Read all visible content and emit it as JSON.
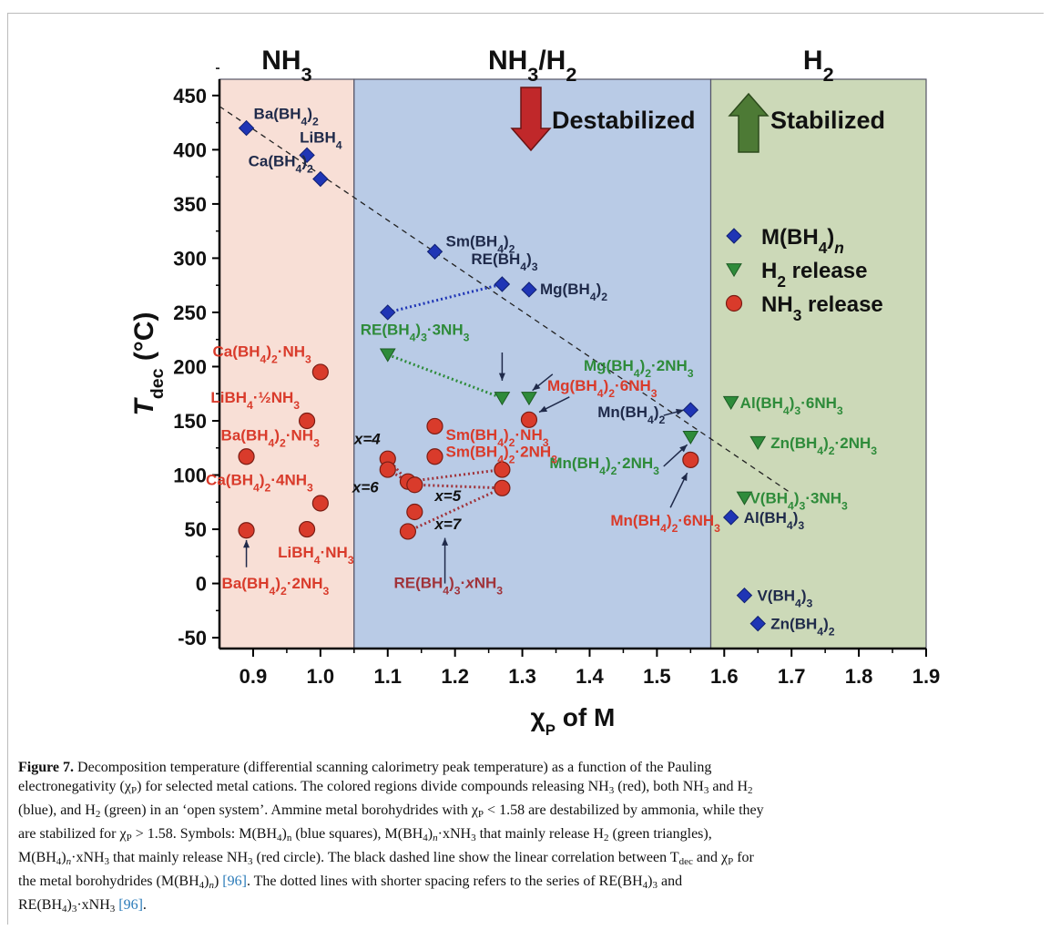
{
  "chart_data": {
    "type": "scatter",
    "xlabel": "χP of M",
    "ylabel": "Tdec (°C)",
    "xlim": [
      0.85,
      1.9
    ],
    "ylim": [
      -60,
      465
    ],
    "xticks": [
      0.9,
      1.0,
      1.1,
      1.2,
      1.3,
      1.4,
      1.5,
      1.6,
      1.7,
      1.8,
      1.9
    ],
    "xtick_labels": [
      "0.9",
      "1.0",
      "1.1",
      "1.2",
      "1.3",
      "1.4",
      "1.5",
      "1.6",
      "1.7",
      "1.8",
      "1.9"
    ],
    "yticks": [
      -50,
      0,
      50,
      100,
      150,
      200,
      250,
      300,
      350,
      400,
      450
    ],
    "ytick_labels": [
      "-50",
      "0",
      "50",
      "100",
      "150",
      "200",
      "250",
      "300",
      "350",
      "400",
      "450"
    ],
    "regions": [
      {
        "label": "NH3",
        "x": [
          0.85,
          1.05
        ],
        "color": "#f8dfd6"
      },
      {
        "label": "NH3/H2",
        "x": [
          1.05,
          1.58
        ],
        "color": "#b9cbe6"
      },
      {
        "label": "H2",
        "x": [
          1.58,
          1.9
        ],
        "color": "#ccd9b8"
      }
    ],
    "arrows": [
      {
        "label": "Destabilized",
        "color": "#c0282a",
        "direction": "down"
      },
      {
        "label": "Stabilized",
        "color": "#4d7a35",
        "direction": "up"
      }
    ],
    "legend": {
      "position": "right",
      "entries": [
        {
          "label": "M(BH4)n",
          "marker": "diamond",
          "color": "#1f35b5"
        },
        {
          "label": "H2 release",
          "marker": "triangle-down",
          "color": "#2e8b3a"
        },
        {
          "label": "NH3 release",
          "marker": "circle",
          "color": "#d93b2b"
        }
      ]
    },
    "series": [
      {
        "name": "M(BH4)n",
        "marker": "diamond",
        "color": "#1f35b5",
        "points": [
          {
            "x": 0.89,
            "y": 420,
            "label": "Ba(BH4)2"
          },
          {
            "x": 0.98,
            "y": 395,
            "label": "LiBH4"
          },
          {
            "x": 1.0,
            "y": 373,
            "label": "Ca(BH4)2"
          },
          {
            "x": 1.17,
            "y": 306,
            "label": "Sm(BH4)2"
          },
          {
            "x": 1.27,
            "y": 276,
            "label": "RE(BH4)3"
          },
          {
            "x": 1.31,
            "y": 271,
            "label": "Mg(BH4)2"
          },
          {
            "x": 1.1,
            "y": 250,
            "label": ""
          },
          {
            "x": 1.55,
            "y": 160,
            "label": "Mn(BH4)2"
          },
          {
            "x": 1.61,
            "y": 61,
            "label": "Al(BH4)3"
          },
          {
            "x": 1.63,
            "y": -11,
            "label": "V(BH4)3"
          },
          {
            "x": 1.65,
            "y": -37,
            "label": "Zn(BH4)2"
          }
        ]
      },
      {
        "name": "H2 release",
        "marker": "triangle-down",
        "color": "#2e8b3a",
        "points": [
          {
            "x": 1.1,
            "y": 211,
            "label": "RE(BH4)3·3NH3"
          },
          {
            "x": 1.27,
            "y": 171,
            "label": ""
          },
          {
            "x": 1.31,
            "y": 171,
            "label": "Mg(BH4)2·2NH3"
          },
          {
            "x": 1.55,
            "y": 135,
            "label": "Mn(BH4)2·2NH3"
          },
          {
            "x": 1.61,
            "y": 167,
            "label": "Al(BH4)3·6NH3"
          },
          {
            "x": 1.65,
            "y": 130,
            "label": "Zn(BH4)2·2NH3"
          },
          {
            "x": 1.63,
            "y": 79,
            "label": "V(BH4)3·3NH3"
          }
        ]
      },
      {
        "name": "NH3 release",
        "marker": "circle",
        "color": "#d93b2b",
        "points": [
          {
            "x": 1.0,
            "y": 195,
            "label": "Ca(BH4)2·NH3"
          },
          {
            "x": 0.98,
            "y": 150,
            "label": "LiBH4·½NH3"
          },
          {
            "x": 0.89,
            "y": 117,
            "label": "Ba(BH4)2·NH3"
          },
          {
            "x": 1.0,
            "y": 74,
            "label": "Ca(BH4)2·4NH3"
          },
          {
            "x": 0.89,
            "y": 49,
            "label": "Ba(BH4)2·2NH3"
          },
          {
            "x": 0.98,
            "y": 50,
            "label": "LiBH4·NH3"
          },
          {
            "x": 1.17,
            "y": 145,
            "label": "Sm(BH4)2·NH3"
          },
          {
            "x": 1.17,
            "y": 117,
            "label": "Sm(BH4)2·2NH3"
          },
          {
            "x": 1.31,
            "y": 151,
            "label": "Mg(BH4)2·6NH3"
          },
          {
            "x": 1.55,
            "y": 114,
            "label": "Mn(BH4)2·6NH3"
          },
          {
            "x": 1.1,
            "y": 115,
            "label": "x=4"
          },
          {
            "x": 1.1,
            "y": 105,
            "label": "x=6"
          },
          {
            "x": 1.13,
            "y": 94,
            "label": ""
          },
          {
            "x": 1.14,
            "y": 91,
            "label": "x=5"
          },
          {
            "x": 1.14,
            "y": 66,
            "label": ""
          },
          {
            "x": 1.13,
            "y": 48,
            "label": ""
          },
          {
            "x": 1.27,
            "y": 105,
            "label": ""
          },
          {
            "x": 1.27,
            "y": 88,
            "label": "x=7"
          }
        ]
      }
    ],
    "dotted_lines": [
      {
        "color": "#1f35b5",
        "points": [
          [
            1.1,
            250
          ],
          [
            1.27,
            276
          ]
        ]
      },
      {
        "color": "#2e8b3a",
        "points": [
          [
            1.1,
            211
          ],
          [
            1.27,
            171
          ]
        ]
      },
      {
        "color": "#a0333a",
        "points": [
          [
            1.1,
            115
          ],
          [
            1.13,
            94
          ],
          [
            1.27,
            105
          ]
        ]
      },
      {
        "color": "#a0333a",
        "points": [
          [
            1.1,
            105
          ],
          [
            1.13,
            94
          ],
          [
            1.14,
            91
          ]
        ]
      },
      {
        "color": "#a0333a",
        "points": [
          [
            1.14,
            91
          ],
          [
            1.27,
            88
          ]
        ]
      },
      {
        "color": "#a0333a",
        "points": [
          [
            1.13,
            48
          ],
          [
            1.27,
            88
          ]
        ]
      }
    ],
    "trendline": {
      "style": "dashed",
      "color": "#222222",
      "points": [
        [
          0.85,
          440
        ],
        [
          1.7,
          83
        ]
      ]
    },
    "annotation": "RE(BH4)3·xNH3"
  },
  "caption": {
    "label": "Figure 7.",
    "line1": "Decomposition temperature (differential scanning calorimetry peak temperature) as a function of the Pauling",
    "line2_pre": "electronegativity (χ",
    "line2_mid": ") for selected metal cations. The colored regions divide compounds releasing NH",
    "line2_a": " (red), both NH",
    "line2_b": " and H",
    "line3_a": "(blue), and H",
    "line3_b": " (green) in an ‘open system’. Ammine metal borohydrides with χ",
    "line3_c": " < 1.58 are destabilized by ammonia, while they",
    "line4_a": "are stabilized for χ",
    "line4_b": " > 1.58. Symbols: M(BH",
    "line4_c": ")",
    "line4_d": " (blue squares), M(BH",
    "line4_e": ")",
    "line4_f": "·xNH",
    "line4_g": " that mainly release H",
    "line4_h": " (green triangles),",
    "line5_a": "M(BH",
    "line5_b": ")",
    "line5_c": "·xNH",
    "line5_d": " that mainly release NH",
    "line5_e": " (red circle). The black dashed line show the linear correlation between T",
    "line5_f": " and χ",
    "line5_g": " for",
    "line6_a": "the metal borohydrides (M(BH",
    "line6_b": ")",
    "line6_c": ")",
    "line6_ref": "[96]",
    "line6_d": ". The dotted lines with shorter spacing refers to the series of RE(BH",
    "line6_e": ")",
    "line6_f": " and",
    "line7_a": "RE(BH",
    "line7_b": ")",
    "line7_c": "·xNH",
    "line7_ref": "[96]",
    "line7_d": "."
  }
}
